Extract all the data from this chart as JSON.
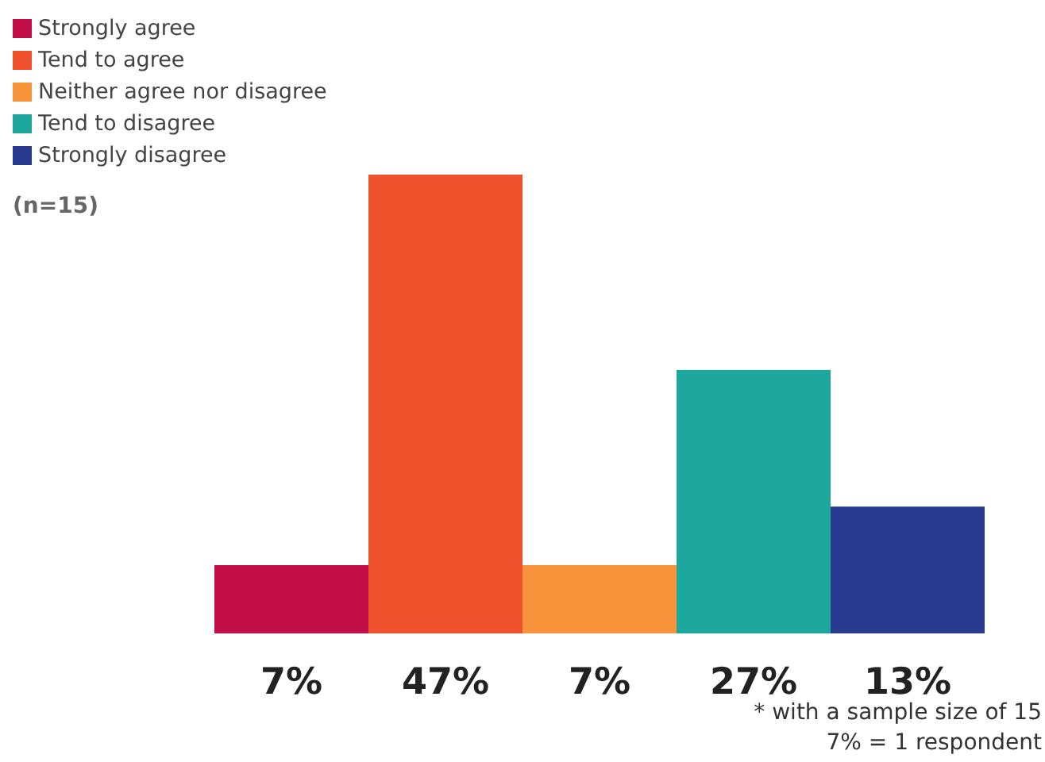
{
  "chart_data": {
    "type": "bar",
    "categories": [
      null
    ],
    "series": [
      {
        "name": "Strongly agree",
        "color": "#c20e48",
        "values": [
          7
        ],
        "value_labels": [
          "7%"
        ]
      },
      {
        "name": "Tend to agree",
        "color": "#f0522e",
        "values": [
          47
        ],
        "value_labels": [
          "47%"
        ]
      },
      {
        "name": "Neither agree nor disagree",
        "color": "#f7933a",
        "values": [
          7
        ],
        "value_labels": [
          "7%"
        ]
      },
      {
        "name": "Tend to disagree",
        "color": "#1ea89d",
        "values": [
          27
        ],
        "value_labels": [
          "27%"
        ]
      },
      {
        "name": "Strongly disagree",
        "color": "#283b91",
        "values": [
          13
        ],
        "value_labels": [
          "13%"
        ]
      }
    ],
    "legend": "top left",
    "tick_labels": false,
    "annotations": [
      "(n=15)",
      "* with a sample size of 15",
      "7% = 1 respondent"
    ]
  }
}
